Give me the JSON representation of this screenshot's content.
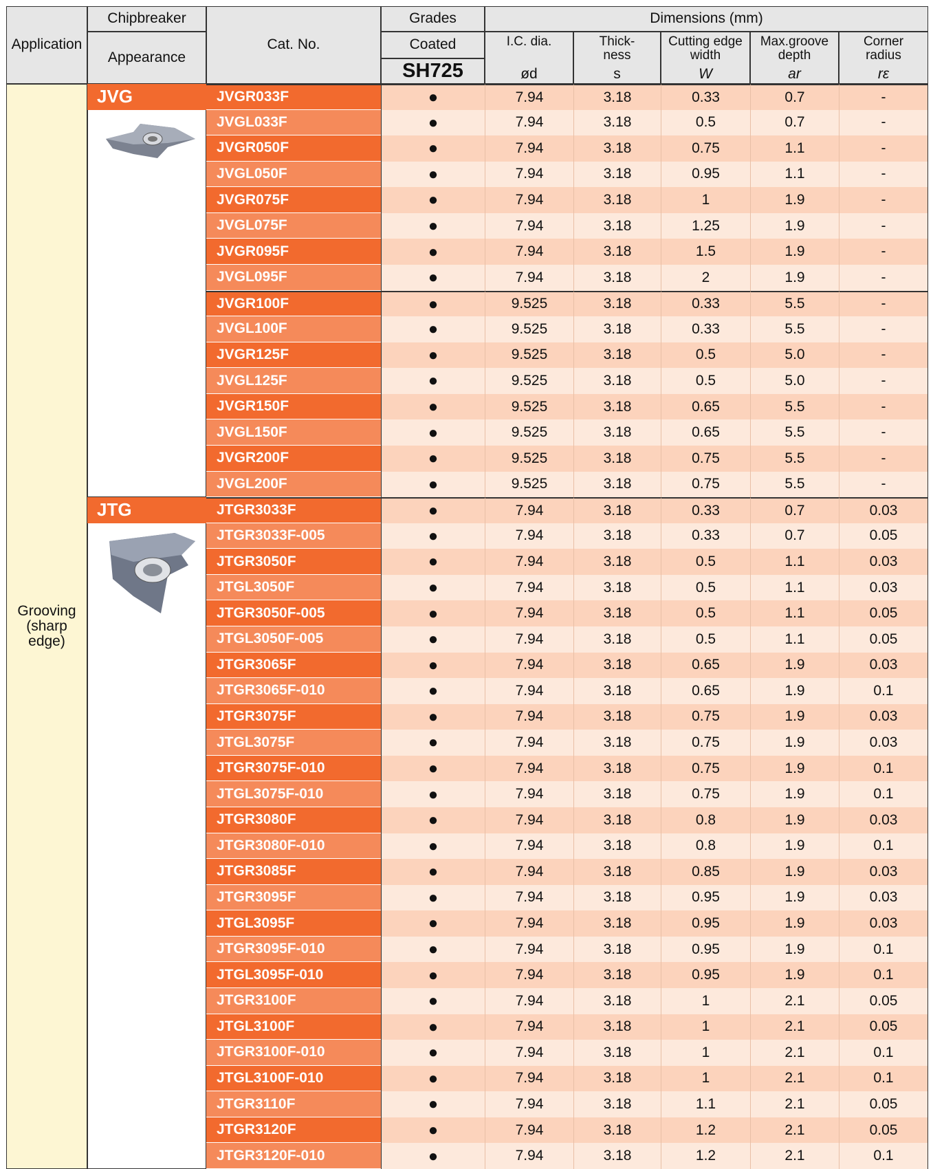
{
  "header": {
    "application": "Application",
    "chipbreaker": "Chipbreaker",
    "appearance": "Appearance",
    "cat_no": "Cat. No.",
    "grades": "Grades",
    "coated": "Coated",
    "grade": "SH725",
    "dimensions": "Dimensions (mm)",
    "columns": [
      {
        "label": [
          "I.C. dia."
        ],
        "symbol": "ød"
      },
      {
        "label": [
          "Thick-",
          "ness"
        ],
        "symbol": "s"
      },
      {
        "label": [
          "Cutting edge",
          "width"
        ],
        "symbol": "W"
      },
      {
        "label": [
          "Max.groove",
          "depth"
        ],
        "symbol": "ar"
      },
      {
        "label": [
          "Corner",
          "radius"
        ],
        "symbol": "rε"
      }
    ]
  },
  "application": "Grooving (sharp edge)",
  "groups": [
    {
      "chipbreaker": "JVG",
      "rows": [
        [
          "JVGR033F",
          "●",
          "7.94",
          "3.18",
          "0.33",
          "0.7",
          "-"
        ],
        [
          "JVGL033F",
          "●",
          "7.94",
          "3.18",
          "0.5",
          "0.7",
          "-"
        ],
        [
          "JVGR050F",
          "●",
          "7.94",
          "3.18",
          "0.75",
          "1.1",
          "-"
        ],
        [
          "JVGL050F",
          "●",
          "7.94",
          "3.18",
          "0.95",
          "1.1",
          "-"
        ],
        [
          "JVGR075F",
          "●",
          "7.94",
          "3.18",
          "1",
          "1.9",
          "-"
        ],
        [
          "JVGL075F",
          "●",
          "7.94",
          "3.18",
          "1.25",
          "1.9",
          "-"
        ],
        [
          "JVGR095F",
          "●",
          "7.94",
          "3.18",
          "1.5",
          "1.9",
          "-"
        ],
        [
          "JVGL095F",
          "●",
          "7.94",
          "3.18",
          "2",
          "1.9",
          "-"
        ],
        [
          "JVGR100F",
          "●",
          "9.525",
          "3.18",
          "0.33",
          "5.5",
          "-"
        ],
        [
          "JVGL100F",
          "●",
          "9.525",
          "3.18",
          "0.33",
          "5.5",
          "-"
        ],
        [
          "JVGR125F",
          "●",
          "9.525",
          "3.18",
          "0.5",
          "5.0",
          "-"
        ],
        [
          "JVGL125F",
          "●",
          "9.525",
          "3.18",
          "0.5",
          "5.0",
          "-"
        ],
        [
          "JVGR150F",
          "●",
          "9.525",
          "3.18",
          "0.65",
          "5.5",
          "-"
        ],
        [
          "JVGL150F",
          "●",
          "9.525",
          "3.18",
          "0.65",
          "5.5",
          "-"
        ],
        [
          "JVGR200F",
          "●",
          "9.525",
          "3.18",
          "0.75",
          "5.5",
          "-"
        ],
        [
          "JVGL200F",
          "●",
          "9.525",
          "3.18",
          "0.75",
          "5.5",
          "-"
        ]
      ]
    },
    {
      "chipbreaker": "JTG",
      "rows": [
        [
          "JTGR3033F",
          "●",
          "7.94",
          "3.18",
          "0.33",
          "0.7",
          "0.03"
        ],
        [
          "JTGR3033F-005",
          "●",
          "7.94",
          "3.18",
          "0.33",
          "0.7",
          "0.05"
        ],
        [
          "JTGR3050F",
          "●",
          "7.94",
          "3.18",
          "0.5",
          "1.1",
          "0.03"
        ],
        [
          "JTGL3050F",
          "●",
          "7.94",
          "3.18",
          "0.5",
          "1.1",
          "0.03"
        ],
        [
          "JTGR3050F-005",
          "●",
          "7.94",
          "3.18",
          "0.5",
          "1.1",
          "0.05"
        ],
        [
          "JTGL3050F-005",
          "●",
          "7.94",
          "3.18",
          "0.5",
          "1.1",
          "0.05"
        ],
        [
          "JTGR3065F",
          "●",
          "7.94",
          "3.18",
          "0.65",
          "1.9",
          "0.03"
        ],
        [
          "JTGR3065F-010",
          "●",
          "7.94",
          "3.18",
          "0.65",
          "1.9",
          "0.1"
        ],
        [
          "JTGR3075F",
          "●",
          "7.94",
          "3.18",
          "0.75",
          "1.9",
          "0.03"
        ],
        [
          "JTGL3075F",
          "●",
          "7.94",
          "3.18",
          "0.75",
          "1.9",
          "0.03"
        ],
        [
          "JTGR3075F-010",
          "●",
          "7.94",
          "3.18",
          "0.75",
          "1.9",
          "0.1"
        ],
        [
          "JTGL3075F-010",
          "●",
          "7.94",
          "3.18",
          "0.75",
          "1.9",
          "0.1"
        ],
        [
          "JTGR3080F",
          "●",
          "7.94",
          "3.18",
          "0.8",
          "1.9",
          "0.03"
        ],
        [
          "JTGR3080F-010",
          "●",
          "7.94",
          "3.18",
          "0.8",
          "1.9",
          "0.1"
        ],
        [
          "JTGR3085F",
          "●",
          "7.94",
          "3.18",
          "0.85",
          "1.9",
          "0.03"
        ],
        [
          "JTGR3095F",
          "●",
          "7.94",
          "3.18",
          "0.95",
          "1.9",
          "0.03"
        ],
        [
          "JTGL3095F",
          "●",
          "7.94",
          "3.18",
          "0.95",
          "1.9",
          "0.03"
        ],
        [
          "JTGR3095F-010",
          "●",
          "7.94",
          "3.18",
          "0.95",
          "1.9",
          "0.1"
        ],
        [
          "JTGL3095F-010",
          "●",
          "7.94",
          "3.18",
          "0.95",
          "1.9",
          "0.1"
        ],
        [
          "JTGR3100F",
          "●",
          "7.94",
          "3.18",
          "1",
          "2.1",
          "0.05"
        ],
        [
          "JTGL3100F",
          "●",
          "7.94",
          "3.18",
          "1",
          "2.1",
          "0.05"
        ],
        [
          "JTGR3100F-010",
          "●",
          "7.94",
          "3.18",
          "1",
          "2.1",
          "0.1"
        ],
        [
          "JTGL3100F-010",
          "●",
          "7.94",
          "3.18",
          "1",
          "2.1",
          "0.1"
        ],
        [
          "JTGR3110F",
          "●",
          "7.94",
          "3.18",
          "1.1",
          "2.1",
          "0.05"
        ],
        [
          "JTGR3120F",
          "●",
          "7.94",
          "3.18",
          "1.2",
          "2.1",
          "0.05"
        ],
        [
          "JTGR3120F-010",
          "●",
          "7.94",
          "3.18",
          "1.2",
          "2.1",
          "0.1"
        ]
      ]
    }
  ]
}
